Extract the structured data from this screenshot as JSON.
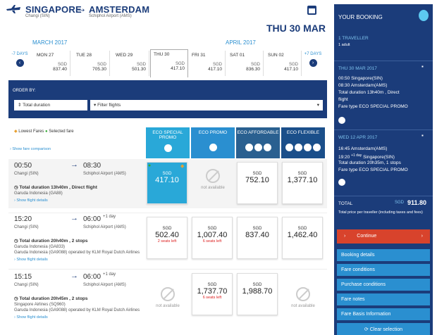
{
  "route": {
    "from_city": "SINGAPORE",
    "from_airport": "Changi (SIN)",
    "to_city": "AMSTERDAM",
    "to_airport": "Schiphol Airport (AMS)",
    "selected_date": "THU 30 MAR"
  },
  "months": {
    "left": "MARCH 2017",
    "right": "APRIL 2017"
  },
  "prev_days": "-7 DAYS",
  "next_days": "+7 DAYS",
  "dates": [
    {
      "day": "MON 27",
      "cur": "SGD",
      "price": "837.40"
    },
    {
      "day": "TUE 28",
      "cur": "SGD",
      "price": "705.30"
    },
    {
      "day": "WED 29",
      "cur": "SGD",
      "price": "501.30"
    },
    {
      "day": "THU 30",
      "cur": "SGD",
      "price": "417.10"
    },
    {
      "day": "FRI 31",
      "cur": "SGD",
      "price": "417.10"
    },
    {
      "day": "SAT 01",
      "cur": "SGD",
      "price": "836.30"
    },
    {
      "day": "SUN 02",
      "cur": "SGD",
      "price": "417.10"
    }
  ],
  "filters": {
    "order_by": "ORDER BY:",
    "sort_value": "Total duration",
    "filter_placeholder": "Filter flights"
  },
  "legend": {
    "lowest": "Lowest Fares",
    "selected": "Selected fare",
    "comparison": "Show fare comparison"
  },
  "fare_headers": [
    {
      "label": "ECO SPECIAL PROMO",
      "color": "#29a8d8"
    },
    {
      "label": "ECO PROMO",
      "color": "#2a8fd0"
    },
    {
      "label": "ECO AFFORDABLE",
      "color": "#2a6090"
    },
    {
      "label": "ECO FLEXIBLE",
      "color": "#1b4f8a"
    }
  ],
  "flights": [
    {
      "dep": "00:50",
      "dep_ap": "Changi (SIN)",
      "arr": "08:30",
      "arr_plus": "",
      "arr_ap": "Schiphol Airport (AMS)",
      "dur": "Total duration 13h40m , Direct flight",
      "airline1": "Garuda Indonesia (GA88)",
      "airline2": "",
      "airline3": "",
      "link": "Show flight details",
      "fares": [
        {
          "cur": "SGD",
          "price": "417.10",
          "seats": "",
          "sel": true
        },
        {
          "na": "not available"
        },
        {
          "cur": "SGD",
          "price": "752.10",
          "seats": ""
        },
        {
          "cur": "SGD",
          "price": "1,377.10",
          "seats": ""
        }
      ]
    },
    {
      "dep": "15:20",
      "dep_ap": "Changi (SIN)",
      "arr": "06:00",
      "arr_plus": "+1 day",
      "arr_ap": "Schiphol Airport (AMS)",
      "dur": "Total duration 20h40m , 2 stops",
      "airline1": "Garuda Indonesia (GA833)",
      "airline2": "Garuda Indonesia (GA9088) operated by KLM Royal Dutch Airlines",
      "airline3": "",
      "link": "Show flight details",
      "fares": [
        {
          "cur": "SGD",
          "price": "502.40",
          "seats": "2 seats left"
        },
        {
          "cur": "SGD",
          "price": "1,007.40",
          "seats": "6 seats left"
        },
        {
          "cur": "SGD",
          "price": "837.40",
          "seats": ""
        },
        {
          "cur": "SGD",
          "price": "1,462.40",
          "seats": ""
        }
      ]
    },
    {
      "dep": "15:15",
      "dep_ap": "Changi (SIN)",
      "arr": "06:00",
      "arr_plus": "+1 day",
      "arr_ap": "Schiphol Airport (AMS)",
      "dur": "Total duration 20h45m , 2 stops",
      "airline1": "Singapore Airlines (SQ960)",
      "airline2": "Garuda Indonesia (GA9088) operated by KLM Royal Dutch Airlines",
      "airline3": "",
      "link": "Show flight details",
      "fares": [
        {
          "na": "not available"
        },
        {
          "cur": "SGD",
          "price": "1,737.70",
          "seats": "6 seats left"
        },
        {
          "cur": "SGD",
          "price": "1,988.70",
          "seats": ""
        },
        {
          "na": "not available"
        }
      ]
    }
  ],
  "booking": {
    "title": "YOUR BOOKING",
    "travellers": "1 TRAVELLER",
    "adults": "1 adult",
    "out_date": "THU 30 MAR 2017",
    "out_l1": "00:50 Singapore(SIN)",
    "out_l2": "08:30 Amsterdam(AMS)",
    "out_l3": "Total duration 13h40m , Direct",
    "out_l4": "flight",
    "out_l5": "Fare type ECO SPECIAL PROMO",
    "ret_date": "WED 12 APR 2017",
    "ret_l1": "16:45 Amsterdam(AMS)",
    "ret_l2": "19:20",
    "ret_l2b": "+1 day",
    "ret_l2c": "Singapore(SIN)",
    "ret_l3": "Total duration 20h35m, 1 stops",
    "ret_l4": "Fare type ECO SPECIAL PROMO",
    "total_label": "TOTAL",
    "total_cur": "SGD",
    "total_value": "911.80",
    "total_note": "Total price per traveller (including taxes and fees)",
    "continue": "Continue",
    "buttons": [
      "Booking details",
      "Fare conditions",
      "Purchase conditions",
      "Fare notes",
      "Fare Basis Information",
      "Clear selection"
    ]
  }
}
